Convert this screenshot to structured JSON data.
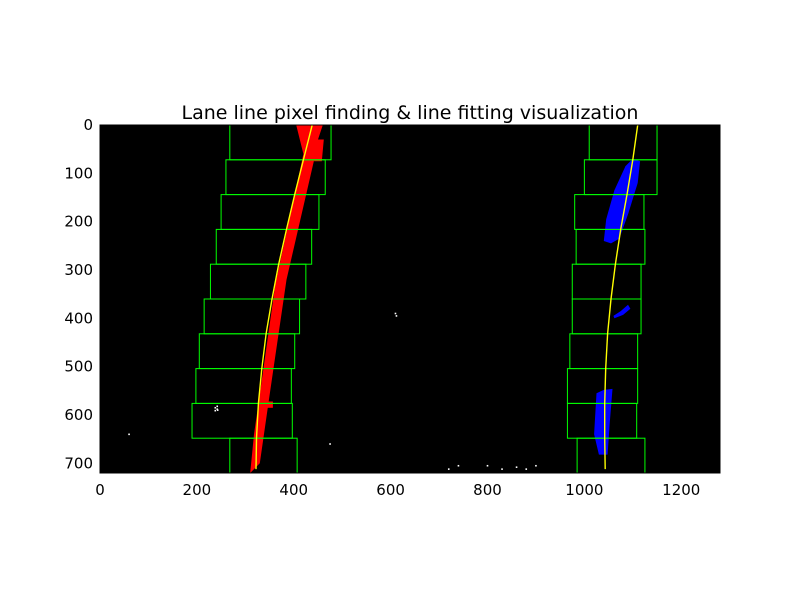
{
  "chart_data": {
    "type": "scatter",
    "title": "Lane line pixel finding & line fitting visualization",
    "xlabel": "",
    "ylabel": "",
    "xlim": [
      0,
      1280
    ],
    "ylim": [
      720,
      0
    ],
    "x_ticks": [
      0,
      200,
      400,
      600,
      800,
      1000,
      1200
    ],
    "y_ticks": [
      0,
      100,
      200,
      300,
      400,
      500,
      600,
      700
    ],
    "grid": false,
    "background": "#000000",
    "colors": {
      "left_pixels": "#ff0000",
      "right_pixels": "#0000ff",
      "windows": "#00ff00",
      "fit": "#ffff00",
      "noise": "#ffffff"
    },
    "left_windows": [
      {
        "x1": 268,
        "y1": 0,
        "x2": 477,
        "y2": 72
      },
      {
        "x1": 260,
        "y1": 72,
        "x2": 465,
        "y2": 144
      },
      {
        "x1": 250,
        "y1": 144,
        "x2": 452,
        "y2": 216
      },
      {
        "x1": 240,
        "y1": 216,
        "x2": 437,
        "y2": 288
      },
      {
        "x1": 228,
        "y1": 288,
        "x2": 425,
        "y2": 360
      },
      {
        "x1": 215,
        "y1": 360,
        "x2": 412,
        "y2": 432
      },
      {
        "x1": 205,
        "y1": 432,
        "x2": 402,
        "y2": 504
      },
      {
        "x1": 198,
        "y1": 504,
        "x2": 395,
        "y2": 576
      },
      {
        "x1": 190,
        "y1": 576,
        "x2": 397,
        "y2": 648
      },
      {
        "x1": 268,
        "y1": 648,
        "x2": 407,
        "y2": 720
      }
    ],
    "right_windows": [
      {
        "x1": 1010,
        "y1": 0,
        "x2": 1150,
        "y2": 72
      },
      {
        "x1": 1000,
        "y1": 72,
        "x2": 1150,
        "y2": 144
      },
      {
        "x1": 980,
        "y1": 144,
        "x2": 1123,
        "y2": 216
      },
      {
        "x1": 983,
        "y1": 216,
        "x2": 1125,
        "y2": 288
      },
      {
        "x1": 975,
        "y1": 288,
        "x2": 1117,
        "y2": 360
      },
      {
        "x1": 975,
        "y1": 360,
        "x2": 1117,
        "y2": 432
      },
      {
        "x1": 970,
        "y1": 432,
        "x2": 1110,
        "y2": 504
      },
      {
        "x1": 965,
        "y1": 504,
        "x2": 1110,
        "y2": 576
      },
      {
        "x1": 965,
        "y1": 576,
        "x2": 1108,
        "y2": 648
      },
      {
        "x1": 985,
        "y1": 648,
        "x2": 1125,
        "y2": 720
      }
    ],
    "left_pixels": [
      {
        "points": [
          [
            405,
            0
          ],
          [
            460,
            0
          ],
          [
            450,
            30
          ],
          [
            445,
            60
          ],
          [
            385,
            320
          ],
          [
            350,
            560
          ],
          [
            330,
            700
          ],
          [
            310,
            720
          ],
          [
            318,
            640
          ],
          [
            338,
            500
          ],
          [
            362,
            330
          ],
          [
            420,
            60
          ]
        ]
      },
      {
        "points": [
          [
            440,
            30
          ],
          [
            462,
            30
          ],
          [
            458,
            75
          ],
          [
            442,
            75
          ]
        ]
      },
      {
        "points": [
          [
            342,
            572
          ],
          [
            357,
            572
          ],
          [
            357,
            585
          ],
          [
            342,
            585
          ]
        ]
      }
    ],
    "right_pixels": [
      {
        "points": [
          [
            1085,
            85
          ],
          [
            1100,
            70
          ],
          [
            1115,
            75
          ],
          [
            1110,
            120
          ],
          [
            1090,
            185
          ],
          [
            1072,
            235
          ],
          [
            1055,
            245
          ],
          [
            1040,
            240
          ],
          [
            1045,
            195
          ],
          [
            1062,
            135
          ]
        ]
      },
      {
        "points": [
          [
            1060,
            395
          ],
          [
            1075,
            385
          ],
          [
            1090,
            372
          ],
          [
            1095,
            380
          ],
          [
            1080,
            393
          ],
          [
            1062,
            400
          ]
        ]
      },
      {
        "points": [
          [
            1025,
            555
          ],
          [
            1040,
            548
          ],
          [
            1058,
            546
          ],
          [
            1052,
            620
          ],
          [
            1048,
            682
          ],
          [
            1030,
            682
          ],
          [
            1020,
            640
          ]
        ]
      }
    ],
    "left_fit": [
      [
        438,
        0
      ],
      [
        420,
        72
      ],
      [
        402,
        144
      ],
      [
        385,
        216
      ],
      [
        369,
        288
      ],
      [
        355,
        360
      ],
      [
        343,
        432
      ],
      [
        334,
        504
      ],
      [
        327,
        576
      ],
      [
        323,
        648
      ],
      [
        322,
        712
      ]
    ],
    "right_fit": [
      [
        1110,
        0
      ],
      [
        1100,
        72
      ],
      [
        1088,
        144
      ],
      [
        1075,
        216
      ],
      [
        1064,
        288
      ],
      [
        1055,
        360
      ],
      [
        1048,
        432
      ],
      [
        1044,
        504
      ],
      [
        1042,
        576
      ],
      [
        1042,
        648
      ],
      [
        1043,
        712
      ]
    ],
    "noise": [
      [
        60,
        640
      ],
      [
        242,
        582
      ],
      [
        238,
        585
      ],
      [
        242,
        588
      ],
      [
        238,
        591
      ],
      [
        243,
        590
      ],
      [
        475,
        660
      ],
      [
        610,
        390
      ],
      [
        612,
        395
      ],
      [
        720,
        712
      ],
      [
        740,
        705
      ],
      [
        800,
        705
      ],
      [
        830,
        712
      ],
      [
        860,
        708
      ],
      [
        880,
        712
      ],
      [
        900,
        705
      ]
    ]
  }
}
